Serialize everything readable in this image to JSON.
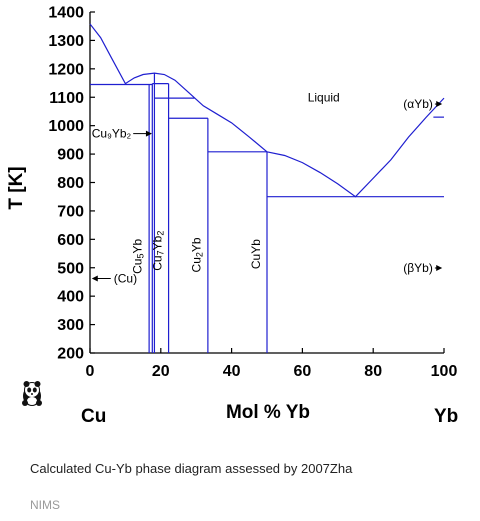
{
  "chart_data": {
    "type": "line",
    "title": "",
    "ylabel": "T [K]",
    "xlabel": "Mol % Yb",
    "xlim": [
      0,
      100
    ],
    "ylim": [
      200,
      1400
    ],
    "x_ticks": [
      0,
      20,
      40,
      60,
      80,
      100
    ],
    "y_ticks": [
      200,
      300,
      400,
      500,
      600,
      700,
      800,
      900,
      1000,
      1100,
      1200,
      1300,
      1400
    ],
    "axis_end_labels": {
      "left": "Cu",
      "right": "Yb"
    },
    "line_color": "#1f1fd0",
    "liquidus": [
      {
        "x": 0,
        "y": 1358
      },
      {
        "x": 3,
        "y": 1310
      },
      {
        "x": 6,
        "y": 1240
      },
      {
        "x": 10,
        "y": 1148
      },
      {
        "x": 12.5,
        "y": 1168
      },
      {
        "x": 15,
        "y": 1180
      },
      {
        "x": 18.2,
        "y": 1185
      },
      {
        "x": 21,
        "y": 1180
      },
      {
        "x": 24,
        "y": 1160
      },
      {
        "x": 28,
        "y": 1115
      },
      {
        "x": 32,
        "y": 1070
      },
      {
        "x": 36,
        "y": 1040
      },
      {
        "x": 40,
        "y": 1010
      },
      {
        "x": 45,
        "y": 960
      },
      {
        "x": 50,
        "y": 908
      },
      {
        "x": 55,
        "y": 895
      },
      {
        "x": 60,
        "y": 870
      },
      {
        "x": 65,
        "y": 835
      },
      {
        "x": 70,
        "y": 795
      },
      {
        "x": 75,
        "y": 750
      },
      {
        "x": 80,
        "y": 815
      },
      {
        "x": 85,
        "y": 880
      },
      {
        "x": 90,
        "y": 960
      },
      {
        "x": 95,
        "y": 1030
      },
      {
        "x": 100,
        "y": 1097
      }
    ],
    "horizontal_lines": [
      {
        "x1": 0,
        "x2": 17.6,
        "y": 1145
      },
      {
        "x1": 17.6,
        "x2": 22.2,
        "y": 1148
      },
      {
        "x1": 18.2,
        "x2": 29.5,
        "y": 1097
      },
      {
        "x1": 22.2,
        "x2": 33.3,
        "y": 1026
      },
      {
        "x1": 33.3,
        "x2": 50,
        "y": 908
      },
      {
        "x1": 50,
        "x2": 100,
        "y": 750
      },
      {
        "x1": 97,
        "x2": 100,
        "y": 1030
      }
    ],
    "vertical_lines": [
      {
        "x": 16.7,
        "y1": 200,
        "y2": 1145
      },
      {
        "x": 17.6,
        "y1": 200,
        "y2": 1148
      },
      {
        "x": 18.2,
        "y1": 200,
        "y2": 1185
      },
      {
        "x": 22.2,
        "y1": 200,
        "y2": 1148
      },
      {
        "x": 33.3,
        "y1": 200,
        "y2": 1026
      },
      {
        "x": 50,
        "y1": 200,
        "y2": 908
      }
    ],
    "annotations": [
      {
        "text": "Liquid",
        "x": 61.5,
        "y": 1085,
        "kind": "text"
      },
      {
        "text": "(αYb)",
        "x": 88.5,
        "y": 1062,
        "kind": "arrow-right",
        "arrow_to": 99.5
      },
      {
        "text": "Cu₉Yb₂",
        "x": 0.5,
        "y": 958,
        "kind": "arrow-right",
        "arrow_to": 17.5
      },
      {
        "text": "(βYb)",
        "x": 88.5,
        "y": 485,
        "kind": "arrow-right",
        "arrow_to": 99.5
      },
      {
        "text": "(Cu)",
        "x": 0.5,
        "y": 448,
        "kind": "arrow-left-text"
      }
    ],
    "vertical_labels": [
      {
        "main": "Cu",
        "sub": "5",
        "main2": "Yb",
        "x": 14.5,
        "y": 540
      },
      {
        "main": "Cu",
        "sub": "7",
        "main2": "Yb",
        "sub2": "2",
        "x": 20.2,
        "y": 560
      },
      {
        "main": "Cu",
        "sub": "2",
        "main2": "Yb",
        "x": 31.2,
        "y": 545
      },
      {
        "main": "Cu",
        "main2": "Yb",
        "x": 48.0,
        "y": 548
      }
    ]
  },
  "caption": "Calculated Cu-Yb phase diagram assessed by 2007Zha",
  "credit": "NIMS",
  "logo_icon": "panda-icon"
}
